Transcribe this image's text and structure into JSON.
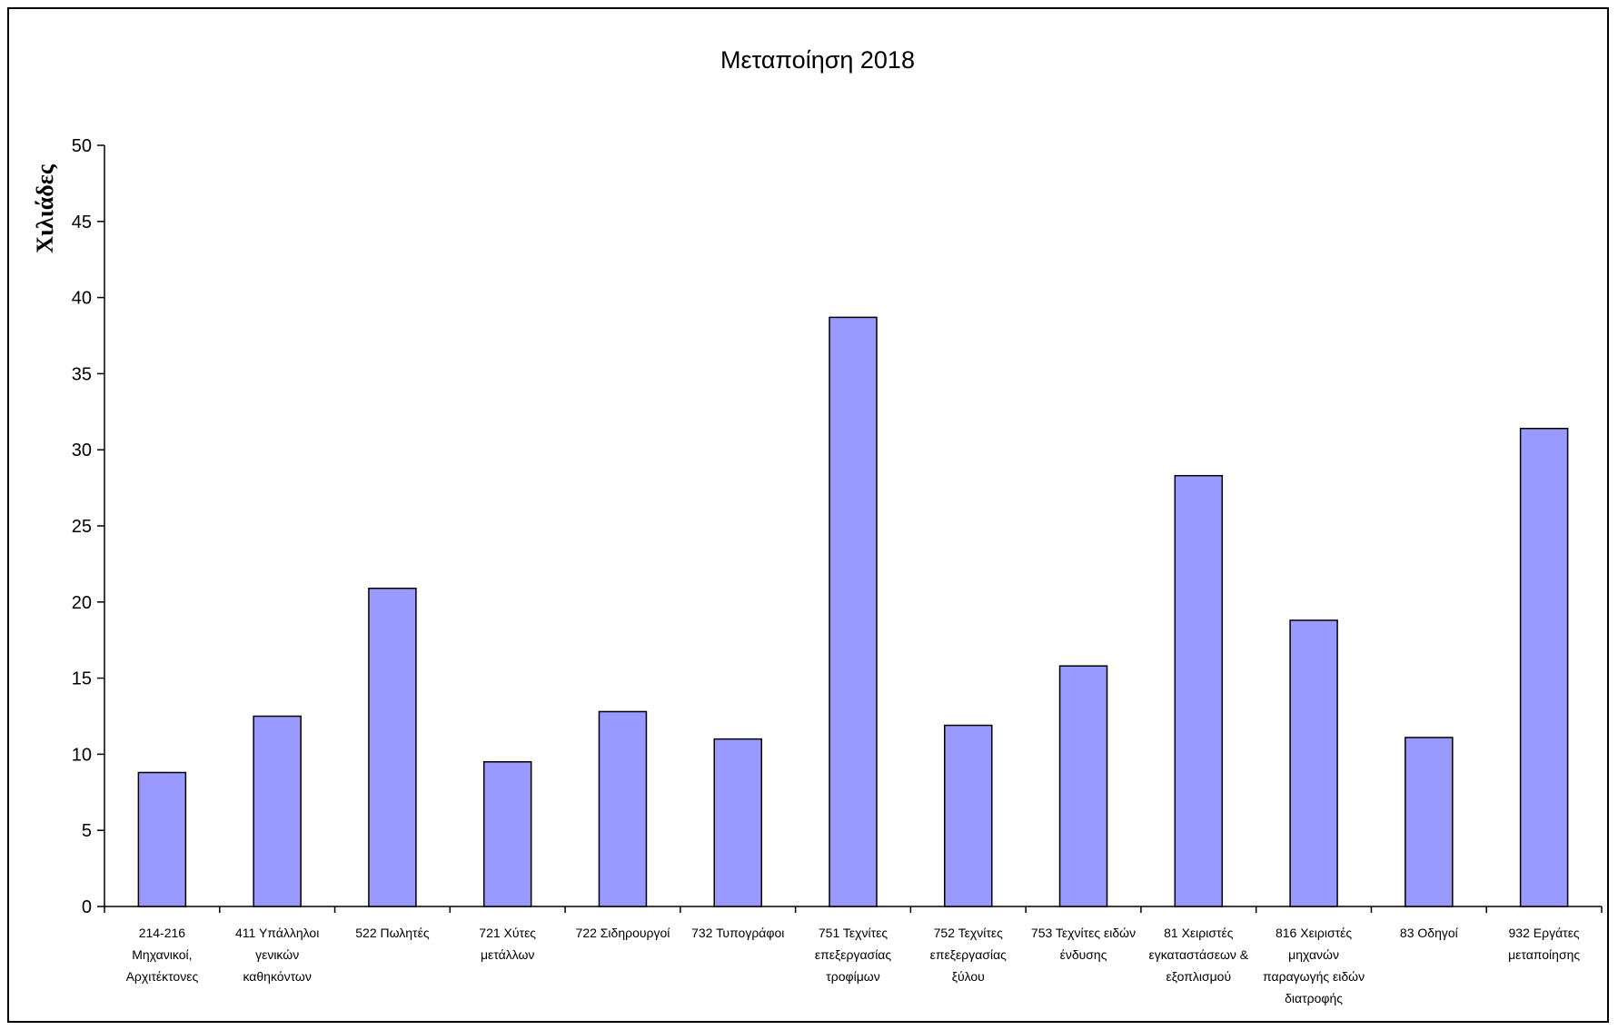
{
  "chart_data": {
    "type": "bar",
    "title": "Μεταποίηση 2018",
    "xlabel": "",
    "ylabel": "Χιλιάδες",
    "ylim": [
      0,
      50
    ],
    "yticks": [
      0,
      5,
      10,
      15,
      20,
      25,
      30,
      35,
      40,
      45,
      50
    ],
    "grid": false,
    "categories": [
      [
        "214-216",
        "Μηχανικοί,",
        "Αρχιτέκτονες"
      ],
      [
        "411 Υπάλληλοι",
        "γενικών",
        "καθηκόντων"
      ],
      [
        "522 Πωλητές"
      ],
      [
        "721 Χύτες",
        "μετάλλων"
      ],
      [
        "722 Σιδηρουργοί"
      ],
      [
        "732 Τυπογράφοι"
      ],
      [
        "751 Τεχνίτες",
        "επεξεργασίας",
        "τροφίμων"
      ],
      [
        "752 Τεχνίτες",
        "επεξεργασίας",
        "ξύλου"
      ],
      [
        "753 Τεχνίτες ειδών",
        "ένδυσης"
      ],
      [
        "81 Χειριστές",
        "εγκαταστάσεων &",
        "εξοπλισμού"
      ],
      [
        "816 Χειριστές",
        "μηχανών",
        "παραγωγής ειδών",
        "διατροφής"
      ],
      [
        "83 Οδηγοί"
      ],
      [
        "932 Εργάτες",
        "μεταποίησης"
      ]
    ],
    "values": [
      8.8,
      12.5,
      20.9,
      9.5,
      12.8,
      11.0,
      38.7,
      11.9,
      15.8,
      28.3,
      18.8,
      11.1,
      31.4
    ],
    "bar_color": "#9999ff",
    "bar_stroke": "#000000"
  }
}
